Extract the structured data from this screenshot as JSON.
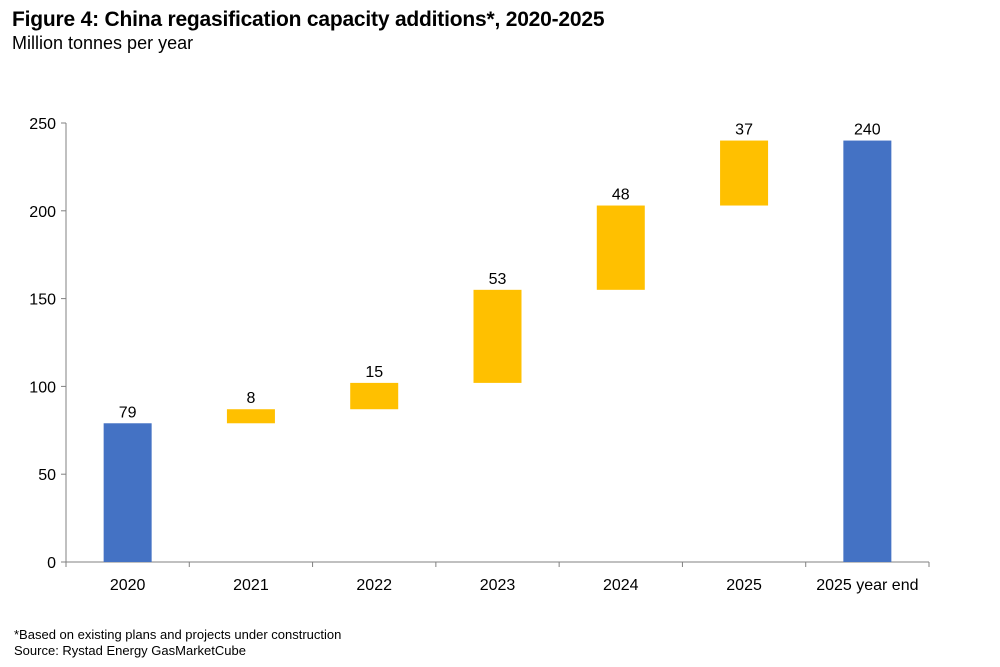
{
  "chart_data": {
    "type": "bar",
    "subtype": "waterfall",
    "title": "Figure 4: China regasification capacity additions*, 2020-2025",
    "subtitle": "Million tonnes per year",
    "xlabel": "",
    "ylabel": "Million tonnes per year",
    "ylim": [
      0,
      250
    ],
    "yticks": [
      0,
      50,
      100,
      150,
      200,
      250
    ],
    "grid": false,
    "legend": null,
    "categories": [
      "2020",
      "2021",
      "2022",
      "2023",
      "2024",
      "2025",
      "2025 year end"
    ],
    "bars": [
      {
        "category": "2020",
        "kind": "total",
        "base": 0,
        "value": 79,
        "label": "79"
      },
      {
        "category": "2021",
        "kind": "increment",
        "base": 79,
        "value": 8,
        "label": "8"
      },
      {
        "category": "2022",
        "kind": "increment",
        "base": 87,
        "value": 15,
        "label": "15"
      },
      {
        "category": "2023",
        "kind": "increment",
        "base": 102,
        "value": 53,
        "label": "53"
      },
      {
        "category": "2024",
        "kind": "increment",
        "base": 155,
        "value": 48,
        "label": "48"
      },
      {
        "category": "2025",
        "kind": "increment",
        "base": 203,
        "value": 37,
        "label": "37"
      },
      {
        "category": "2025 year end",
        "kind": "total",
        "base": 0,
        "value": 240,
        "label": "240"
      }
    ],
    "colors": {
      "total": "#4472C4",
      "increment": "#FFC000",
      "axis": "#808080"
    }
  },
  "footnotes": {
    "note": "*Based on existing plans and projects under construction",
    "source": "Source: Rystad Energy GasMarketCube"
  }
}
